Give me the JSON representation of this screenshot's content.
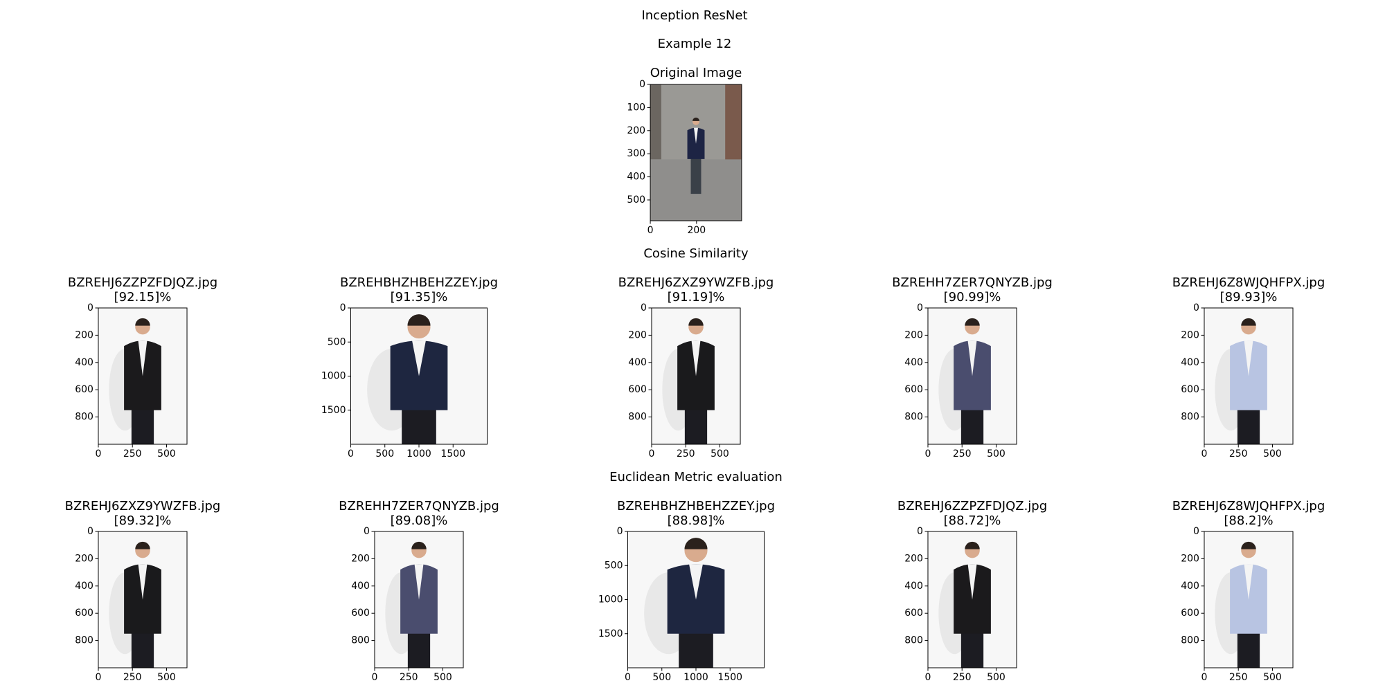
{
  "title": "Inception ResNet",
  "subtitle": "Example 12",
  "original": {
    "title": "Original Image",
    "xlim": [
      0,
      395
    ],
    "ylim": [
      0,
      590
    ],
    "xticks": [
      0,
      200
    ],
    "yticks": [
      0,
      100,
      200,
      300,
      400,
      500
    ]
  },
  "sections": [
    {
      "title": "Cosine Similarity",
      "panels": [
        {
          "filename": "BZREHJ6ZZPZFDJQZ.jpg",
          "similarity": "[92.15]%",
          "xlim": [
            0,
            650
          ],
          "ylim": [
            0,
            1000
          ],
          "xticks": [
            0,
            250,
            500
          ],
          "yticks": [
            0,
            200,
            400,
            600,
            800
          ]
        },
        {
          "filename": "BZREHBHZHBEHZZEY.jpg",
          "similarity": "[91.35]%",
          "xlim": [
            0,
            2000
          ],
          "ylim": [
            0,
            2000
          ],
          "xticks": [
            0,
            500,
            1000,
            1500
          ],
          "yticks": [
            0,
            500,
            1000,
            1500
          ]
        },
        {
          "filename": "BZREHJ6ZXZ9YWZFB.jpg",
          "similarity": "[91.19]%",
          "xlim": [
            0,
            650
          ],
          "ylim": [
            0,
            1000
          ],
          "xticks": [
            0,
            250,
            500
          ],
          "yticks": [
            0,
            200,
            400,
            600,
            800
          ]
        },
        {
          "filename": "BZREHH7ZER7QNYZB.jpg",
          "similarity": "[90.99]%",
          "xlim": [
            0,
            650
          ],
          "ylim": [
            0,
            1000
          ],
          "xticks": [
            0,
            250,
            500
          ],
          "yticks": [
            0,
            200,
            400,
            600,
            800
          ]
        },
        {
          "filename": "BZREHJ6Z8WJQHFPX.jpg",
          "similarity": "[89.93]%",
          "xlim": [
            0,
            650
          ],
          "ylim": [
            0,
            1000
          ],
          "xticks": [
            0,
            250,
            500
          ],
          "yticks": [
            0,
            200,
            400,
            600,
            800
          ]
        }
      ]
    },
    {
      "title": "Euclidean Metric evaluation",
      "panels": [
        {
          "filename": "BZREHJ6ZXZ9YWZFB.jpg",
          "similarity": "[89.32]%",
          "xlim": [
            0,
            650
          ],
          "ylim": [
            0,
            1000
          ],
          "xticks": [
            0,
            250,
            500
          ],
          "yticks": [
            0,
            200,
            400,
            600,
            800
          ]
        },
        {
          "filename": "BZREHH7ZER7QNYZB.jpg",
          "similarity": "[89.08]%",
          "xlim": [
            0,
            650
          ],
          "ylim": [
            0,
            1000
          ],
          "xticks": [
            0,
            250,
            500
          ],
          "yticks": [
            0,
            200,
            400,
            600,
            800
          ]
        },
        {
          "filename": "BZREHBHZHBEHZZEY.jpg",
          "similarity": "[88.98]%",
          "xlim": [
            0,
            2000
          ],
          "ylim": [
            0,
            2000
          ],
          "xticks": [
            0,
            500,
            1000,
            1500
          ],
          "yticks": [
            0,
            500,
            1000,
            1500
          ]
        },
        {
          "filename": "BZREHJ6ZZPZFDJQZ.jpg",
          "similarity": "[88.72]%",
          "xlim": [
            0,
            650
          ],
          "ylim": [
            0,
            1000
          ],
          "xticks": [
            0,
            250,
            500
          ],
          "yticks": [
            0,
            200,
            400,
            600,
            800
          ]
        },
        {
          "filename": "BZREHJ6Z8WJQHFPX.jpg",
          "similarity": "[88.2]%",
          "xlim": [
            0,
            650
          ],
          "ylim": [
            0,
            1000
          ],
          "xticks": [
            0,
            250,
            500
          ],
          "yticks": [
            0,
            200,
            400,
            600,
            800
          ]
        }
      ]
    }
  ]
}
